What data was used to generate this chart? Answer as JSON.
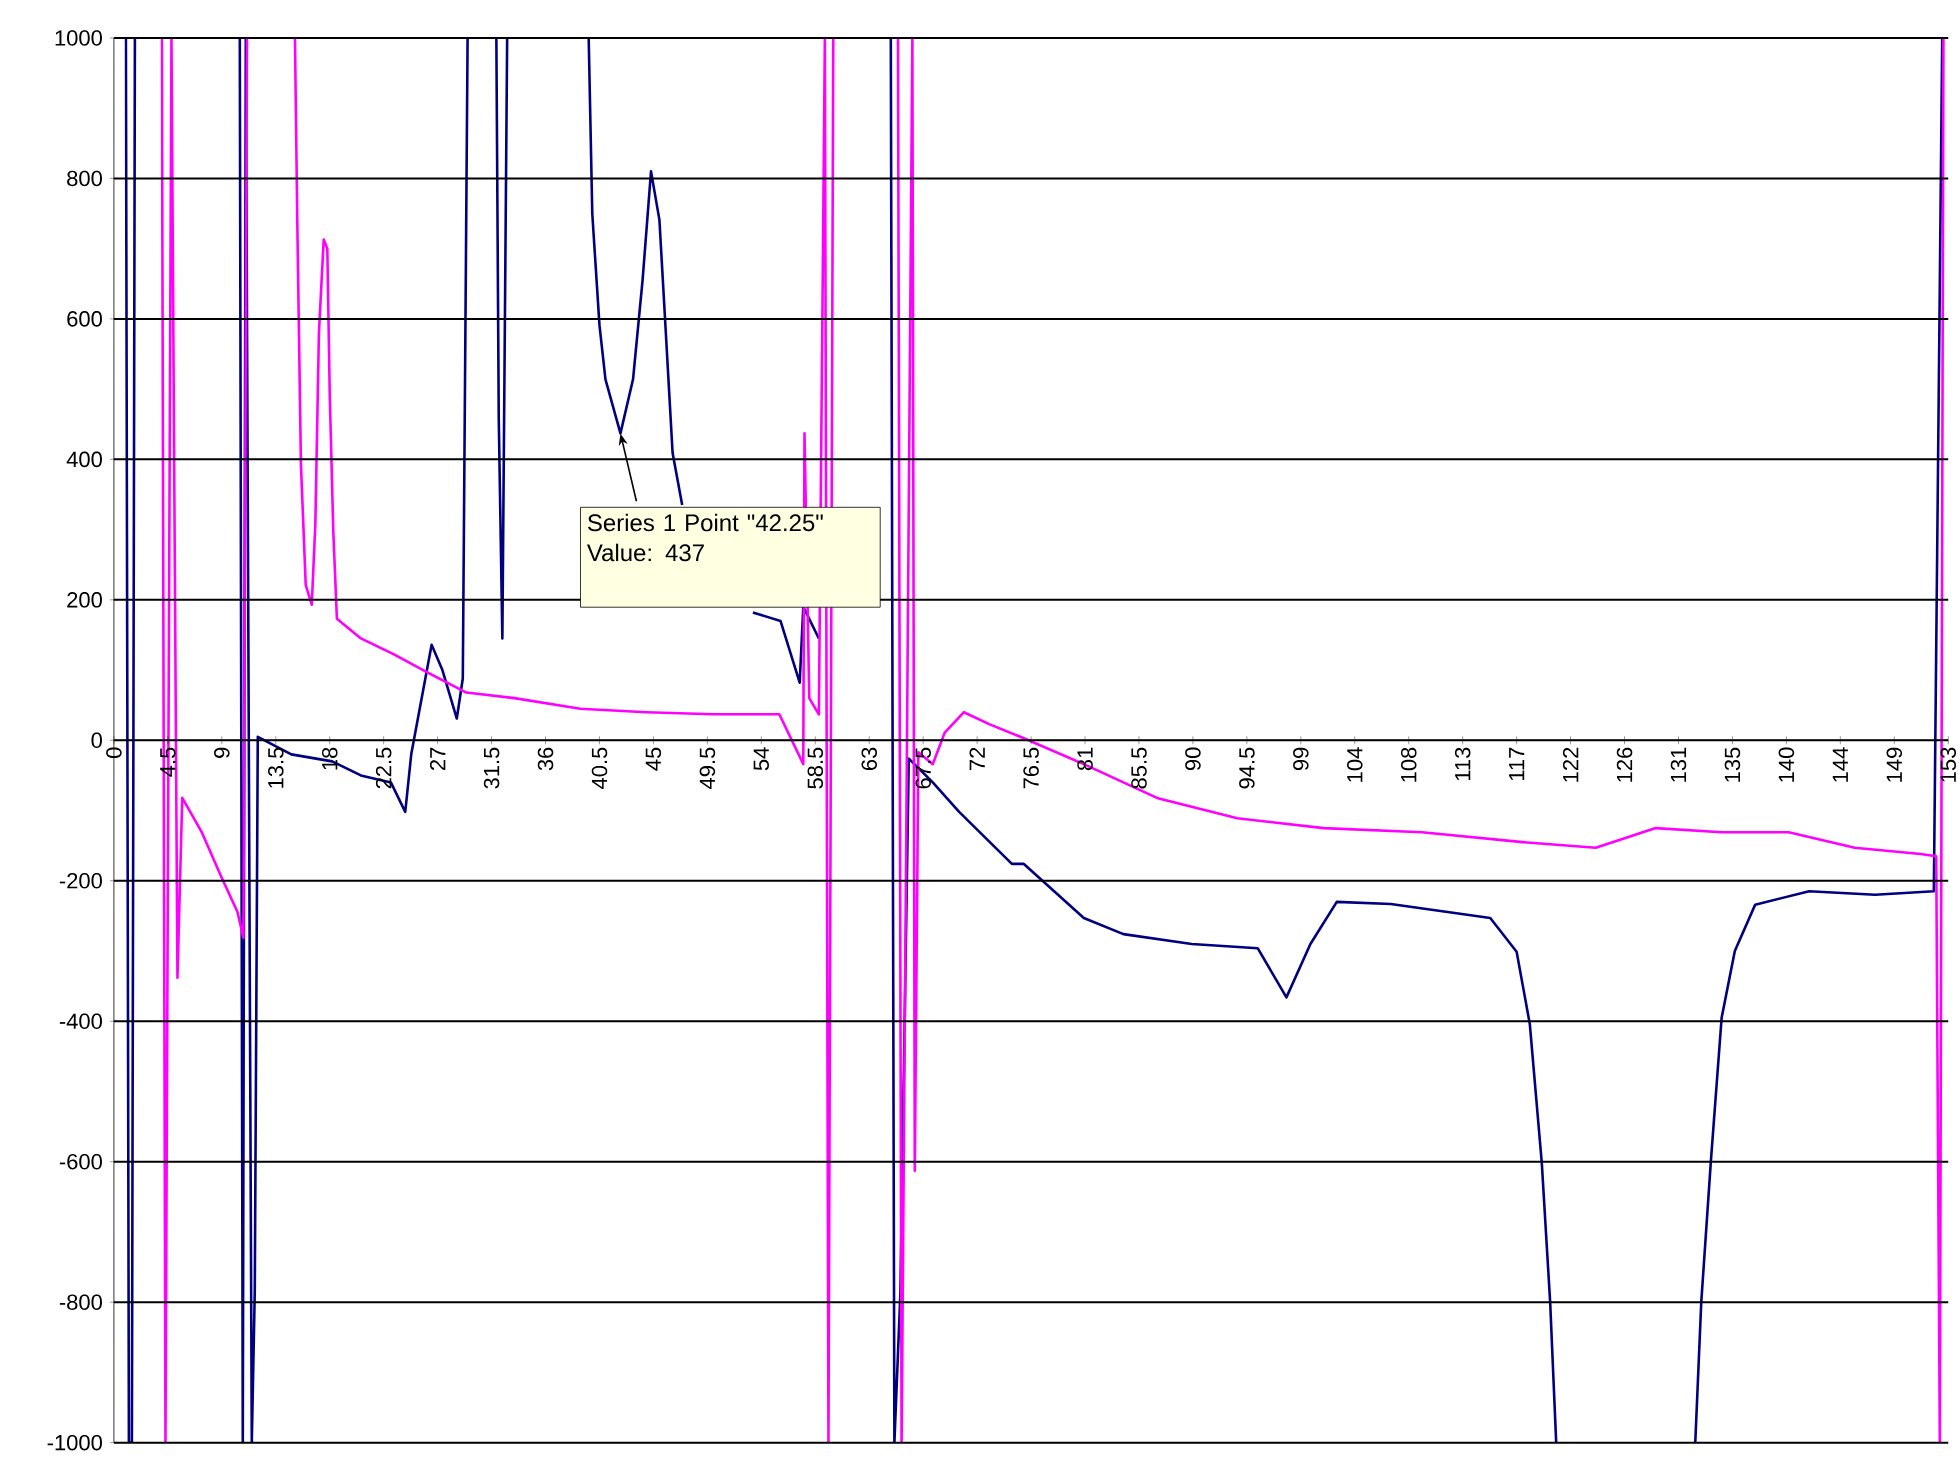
{
  "chart_data": {
    "type": "line",
    "grid": "y",
    "xlim": [
      0,
      153
    ],
    "ylim": [
      -1000,
      1000
    ],
    "xticks": [
      0,
      4.5,
      9,
      13.5,
      18,
      22.5,
      27,
      31.5,
      36,
      40.5,
      45,
      49.5,
      54,
      58.5,
      63,
      67.5,
      72,
      76.5,
      81,
      85.5,
      90,
      94.5,
      99,
      {
        "value": 103.5,
        "label": "104"
      },
      108,
      {
        "value": 112.5,
        "label": "113"
      },
      117,
      {
        "value": 121.5,
        "label": "122"
      },
      126,
      {
        "value": 130.5,
        "label": "131"
      },
      135,
      {
        "value": 139.5,
        "label": "140"
      },
      144,
      {
        "value": 148.5,
        "label": "149"
      },
      153
    ],
    "yticks": [
      -1000,
      -800,
      -600,
      -400,
      -200,
      0,
      200,
      400,
      600,
      800,
      1000
    ],
    "annotations": [
      {
        "text": "Series 1 Point \"42.25\" Value: 437",
        "x": 42.25,
        "y": 437
      }
    ],
    "series": [
      {
        "color": "#000080",
        "x": [
          1.0,
          1.25,
          1.5,
          1.75,
          5,
          10.5,
          10.75,
          11.0,
          11.5,
          11.75,
          12.0,
          14.8,
          18.2,
          20.6,
          23.1,
          24.3,
          24.8,
          26.5,
          27.4,
          28.6,
          29.1,
          29.5,
          30.5,
          31.9,
          32.1,
          32.4,
          32.8,
          35,
          39.6,
          39.9,
          40.5,
          41.0,
          42.25,
          43.3,
          44.1,
          44.8,
          45.5,
          46.0,
          46.6,
          47.4,
          50,
          53.3,
          55.6,
          57.2,
          57.5,
          58.8,
          62,
          64.8,
          65.1,
          65.6,
          66.3,
          68.3,
          70.5,
          74.9,
          75.9,
          80.9,
          84.2,
          89.9,
          95.4,
          97.8,
          99.8,
          102.0,
          106.5,
          114.8,
          117.0,
          118.1,
          119.1,
          119.8,
          120.3,
          126,
          131.9,
          132.4,
          133.2,
          134.1,
          135.2,
          136.9,
          141.4,
          146.9,
          151.8,
          152.5
        ],
        "values": [
          1000,
          -1000,
          -1000,
          1000,
          null,
          1000,
          -1000,
          1000,
          -1000,
          -784,
          5,
          -20,
          -30,
          -50,
          -60,
          -102,
          -20,
          136,
          100,
          31,
          88,
          1000,
          null,
          1000,
          457,
          145,
          1000,
          null,
          1000,
          750,
          591,
          514,
          437,
          514,
          656,
          810,
          741,
          591,
          409,
          335,
          null,
          182,
          170,
          82,
          190,
          145,
          null,
          1000,
          -1000,
          -787,
          -26,
          -60,
          -102,
          -176,
          -176,
          -253,
          -276,
          -290,
          -296,
          -366,
          -290,
          -230,
          -233,
          -253,
          -301,
          -404,
          -602,
          -801,
          -1000,
          null,
          -1000,
          -800,
          -600,
          -395,
          -300,
          -234,
          -215,
          -220,
          -215,
          1000
        ]
      },
      {
        "color": "#ff00ff",
        "x": [
          4.0,
          4.3,
          4.8,
          5.3,
          5.7,
          7.3,
          9.0,
          10.3,
          10.8,
          11.1,
          13,
          15.1,
          15.3,
          15.6,
          16.0,
          16.5,
          16.8,
          17.1,
          17.5,
          17.8,
          18.0,
          18.3,
          18.6,
          20.6,
          23.4,
          26.1,
          29.4,
          33.4,
          38.9,
          44.4,
          50.0,
          55.5,
          57.5,
          57.6,
          58.0,
          58.8,
          59.3,
          59.6,
          60.0,
          62,
          65.4,
          65.7,
          66.6,
          66.8,
          67.1,
          68.3,
          69.3,
          70.9,
          73.0,
          75.9,
          80.9,
          87.0,
          93.7,
          100.9,
          109.1,
          117.5,
          123.6,
          128.6,
          134.1,
          139.7,
          145.2,
          150.7,
          152.0,
          152.3,
          152.6
        ],
        "values": [
          1000,
          -1000,
          1000,
          -338,
          -82,
          -130,
          -196,
          -244,
          -281,
          1000,
          null,
          1000,
          733,
          392,
          221,
          193,
          307,
          580,
          713,
          700,
          494,
          296,
          173,
          145,
          122,
          97,
          68,
          60,
          45,
          40,
          37,
          37,
          -34,
          437,
          60,
          37,
          1000,
          -1000,
          1000,
          null,
          1000,
          -1000,
          1000,
          -613,
          -17,
          -34,
          11,
          40,
          23,
          3,
          -34,
          -82,
          -111,
          -125,
          -131,
          -145,
          -153,
          -125,
          -131,
          -131,
          -153,
          -162,
          -165,
          -1000,
          1000
        ]
      }
    ]
  }
}
